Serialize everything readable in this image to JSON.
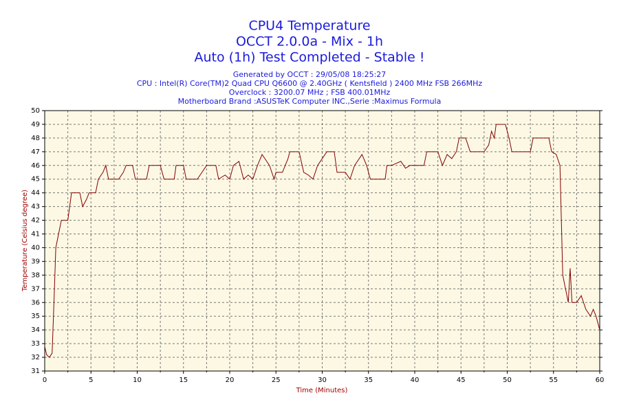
{
  "chart_data": {
    "type": "line",
    "title": "CPU4 Temperature",
    "subtitle_lines": [
      "OCCT 2.0.0a - Mix - 1h",
      "Auto (1h) Test Completed - Stable !"
    ],
    "info_lines": [
      "Generated by OCCT : 29/05/08 18:25:27",
      "CPU : Intel(R) Core(TM)2 Quad CPU Q6600 @ 2.40GHz ( Kentsfield ) 2400 MHz FSB 266MHz",
      "Overclock : 3200.07 MHz ; FSB 400.01MHz",
      "Motherboard Brand :ASUSTeK Computer INC.,Serie :Maximus Formula"
    ],
    "x_label": "Time (Minutes)",
    "y_label": "Temperature (Celsius degree)",
    "x": [
      0,
      0.2,
      0.5,
      0.8,
      1.0,
      1.2,
      1.5,
      1.8,
      2.5,
      2.9,
      3.8,
      4.1,
      4.5,
      4.8,
      5.5,
      5.8,
      6.3,
      6.6,
      6.9,
      7.5,
      8.0,
      8.5,
      8.8,
      9.5,
      9.8,
      11,
      11.3,
      12.5,
      12.9,
      14,
      14.2,
      15,
      15.3,
      16.5,
      17,
      17.5,
      18.5,
      18.8,
      19.5,
      20,
      20.4,
      21,
      21.5,
      22,
      22.5,
      23,
      23.5,
      24.3,
      24.8,
      25,
      25.7,
      26.3,
      26.5,
      27.5,
      28,
      28.5,
      29,
      29.5,
      30,
      30.5,
      31.3,
      31.6,
      32.5,
      33,
      33.5,
      34.3,
      34.8,
      35.2,
      36.8,
      37,
      37.5,
      38.5,
      39,
      39.5,
      40,
      41,
      41.3,
      42.5,
      43,
      43.5,
      44,
      44.5,
      44.8,
      45.5,
      46,
      47.5,
      48,
      48.3,
      48.6,
      48.8,
      49.8,
      50.2,
      50.5,
      52.5,
      52.8,
      54.5,
      54.8,
      55.3,
      55.7,
      56,
      56.3,
      56.6,
      56.8,
      57,
      57.5,
      58,
      58.5,
      59,
      59.3,
      59.6,
      59.8,
      60
    ],
    "series": [
      {
        "name": "CPU4",
        "color": "#800000",
        "values": [
          32.8,
          32.2,
          32,
          32.3,
          36,
          40,
          41,
          42,
          42,
          44,
          44,
          43,
          43.5,
          44,
          44,
          45,
          45.5,
          46,
          45,
          45,
          45,
          45.5,
          46,
          46,
          45,
          45,
          46,
          46,
          45,
          45,
          46,
          46,
          45,
          45,
          45.5,
          46,
          46,
          45,
          45.3,
          45,
          46,
          46.3,
          45,
          45.3,
          45,
          46,
          46.8,
          46,
          45,
          45.5,
          45.5,
          46.5,
          47,
          47,
          45.5,
          45.3,
          45,
          46,
          46.5,
          47,
          47,
          45.5,
          45.5,
          45,
          46,
          46.8,
          46,
          45,
          45,
          46,
          46,
          46.3,
          45.8,
          46,
          46,
          46,
          47,
          47,
          46,
          46.8,
          46.5,
          47,
          48,
          48,
          47,
          47,
          47.5,
          48.5,
          48,
          49,
          49,
          48,
          47,
          47,
          48,
          48,
          47,
          46.8,
          46,
          38,
          37,
          36,
          38.5,
          36,
          36,
          36.5,
          35.5,
          35,
          35.5,
          35,
          34.5,
          34
        ]
      }
    ],
    "xlim": [
      0,
      60
    ],
    "ylim": [
      31,
      50
    ],
    "xticks": [
      0,
      5,
      10,
      15,
      20,
      25,
      30,
      35,
      40,
      45,
      50,
      55,
      60
    ],
    "xminor_ticks": [
      2.5,
      7.5,
      12.5,
      17.5,
      22.5,
      27.5,
      32.5,
      37.5,
      42.5,
      47.5,
      52.5,
      57.5
    ],
    "yticks": [
      31,
      32,
      33,
      34,
      35,
      36,
      37,
      38,
      39,
      40,
      41,
      42,
      43,
      44,
      45,
      46,
      47,
      48,
      49,
      50
    ],
    "grid": true
  }
}
